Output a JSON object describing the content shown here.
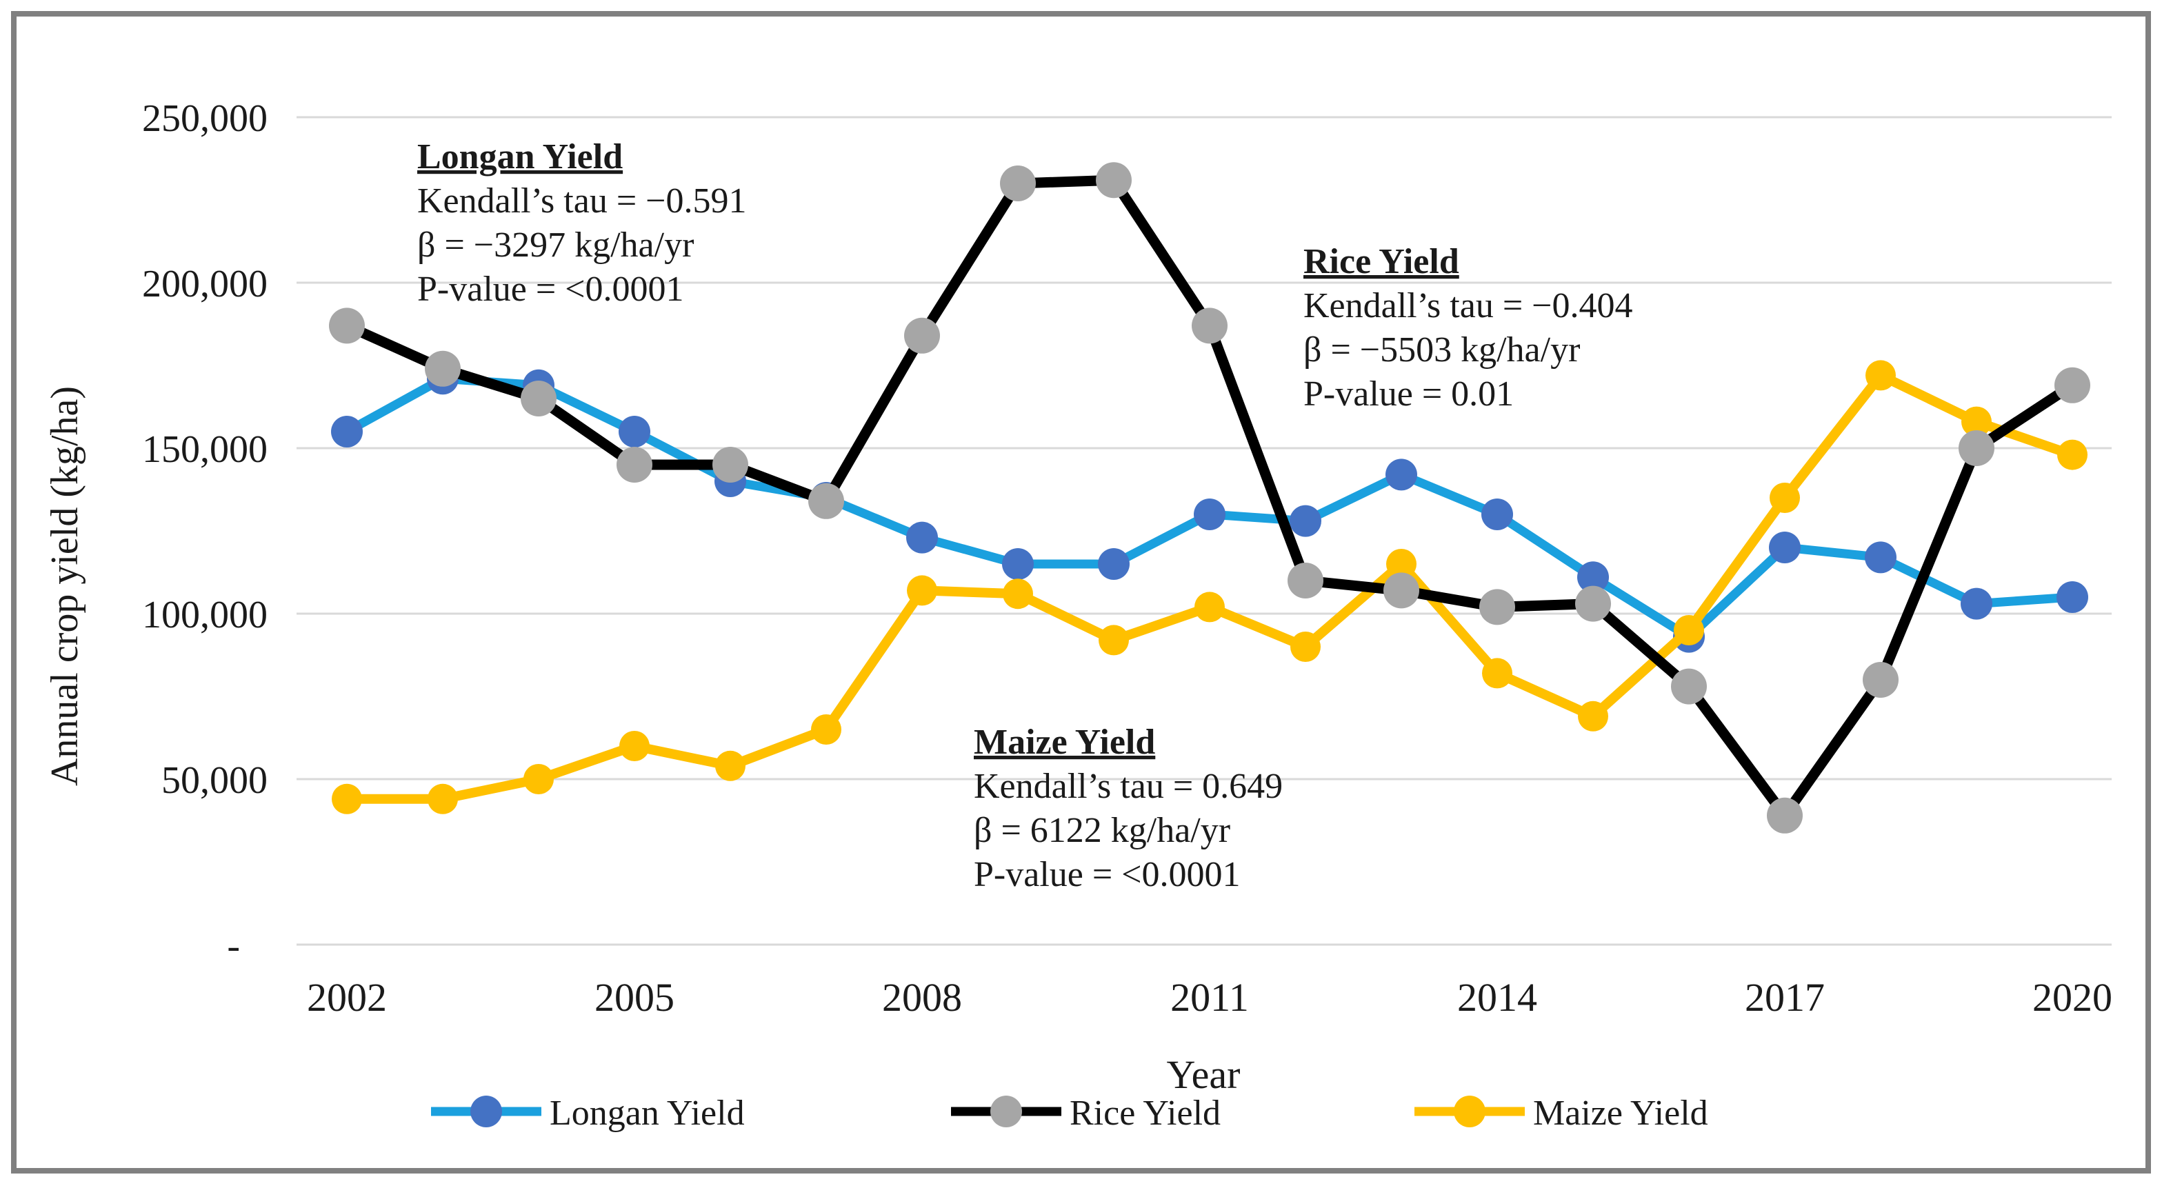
{
  "figure": {
    "background": "#ffffff",
    "border_color": "#808080"
  },
  "chart_data": {
    "type": "line",
    "title": "",
    "xlabel": "Year",
    "ylabel": "Annual crop yield (kg/ha)",
    "x": [
      2002,
      2003,
      2004,
      2005,
      2006,
      2007,
      2008,
      2009,
      2010,
      2011,
      2012,
      2013,
      2014,
      2015,
      2016,
      2017,
      2018,
      2019,
      2020
    ],
    "x_tick_years": [
      2002,
      2005,
      2008,
      2011,
      2014,
      2017,
      2020
    ],
    "y_ticks": [
      {
        "value": 250000,
        "label": "250,000"
      },
      {
        "value": 200000,
        "label": "200,000"
      },
      {
        "value": 150000,
        "label": "150,000"
      },
      {
        "value": 100000,
        "label": "100,000"
      },
      {
        "value": 50000,
        "label": "50,000"
      },
      {
        "value": 0,
        "label": "-"
      }
    ],
    "ylim": [
      0,
      250000
    ],
    "grid": true,
    "legend_position": "bottom",
    "series": [
      {
        "name": "Longan Yield",
        "line_color": "#1BA0DE",
        "marker_color": "#4472C4",
        "values": [
          155000,
          171000,
          169000,
          155000,
          140000,
          135000,
          123000,
          115000,
          115000,
          130000,
          128000,
          142000,
          130000,
          111000,
          93000,
          120000,
          117000,
          103000,
          105000
        ]
      },
      {
        "name": "Rice Yield",
        "line_color": "#000000",
        "marker_color": "#A6A6A6",
        "values": [
          187000,
          174000,
          165000,
          145000,
          145000,
          134000,
          184000,
          230000,
          231000,
          187000,
          110000,
          107000,
          102000,
          103000,
          78000,
          39000,
          80000,
          150000,
          169000
        ]
      },
      {
        "name": "Maize Yield",
        "line_color": "#FFC000",
        "marker_color": "#FFC000",
        "values": [
          44000,
          44000,
          50000,
          60000,
          54000,
          65000,
          107000,
          106000,
          92000,
          102000,
          90000,
          115000,
          82000,
          69000,
          95000,
          135000,
          172000,
          158000,
          148000
        ]
      }
    ],
    "draw_order": [
      0,
      2,
      1
    ],
    "annotations": [
      {
        "title": "Longan Yield",
        "lines": [
          "Kendall’s tau = −0.591",
          "β = −3297 kg/ha/yr",
          "P-value = <0.0001"
        ],
        "x": 605,
        "y_top": 198
      },
      {
        "title": "Rice Yield",
        "lines": [
          "Kendall’s tau = −0.404",
          "β = −5503 kg/ha/yr",
          "P-value = 0.01"
        ],
        "x": 1890,
        "y_top": 350
      },
      {
        "title": "Maize Yield",
        "lines": [
          "Kendall’s tau = 0.649",
          "β = 6122 kg/ha/yr",
          "P-value = <0.0001"
        ],
        "x": 1412,
        "y_top": 1047
      }
    ]
  }
}
